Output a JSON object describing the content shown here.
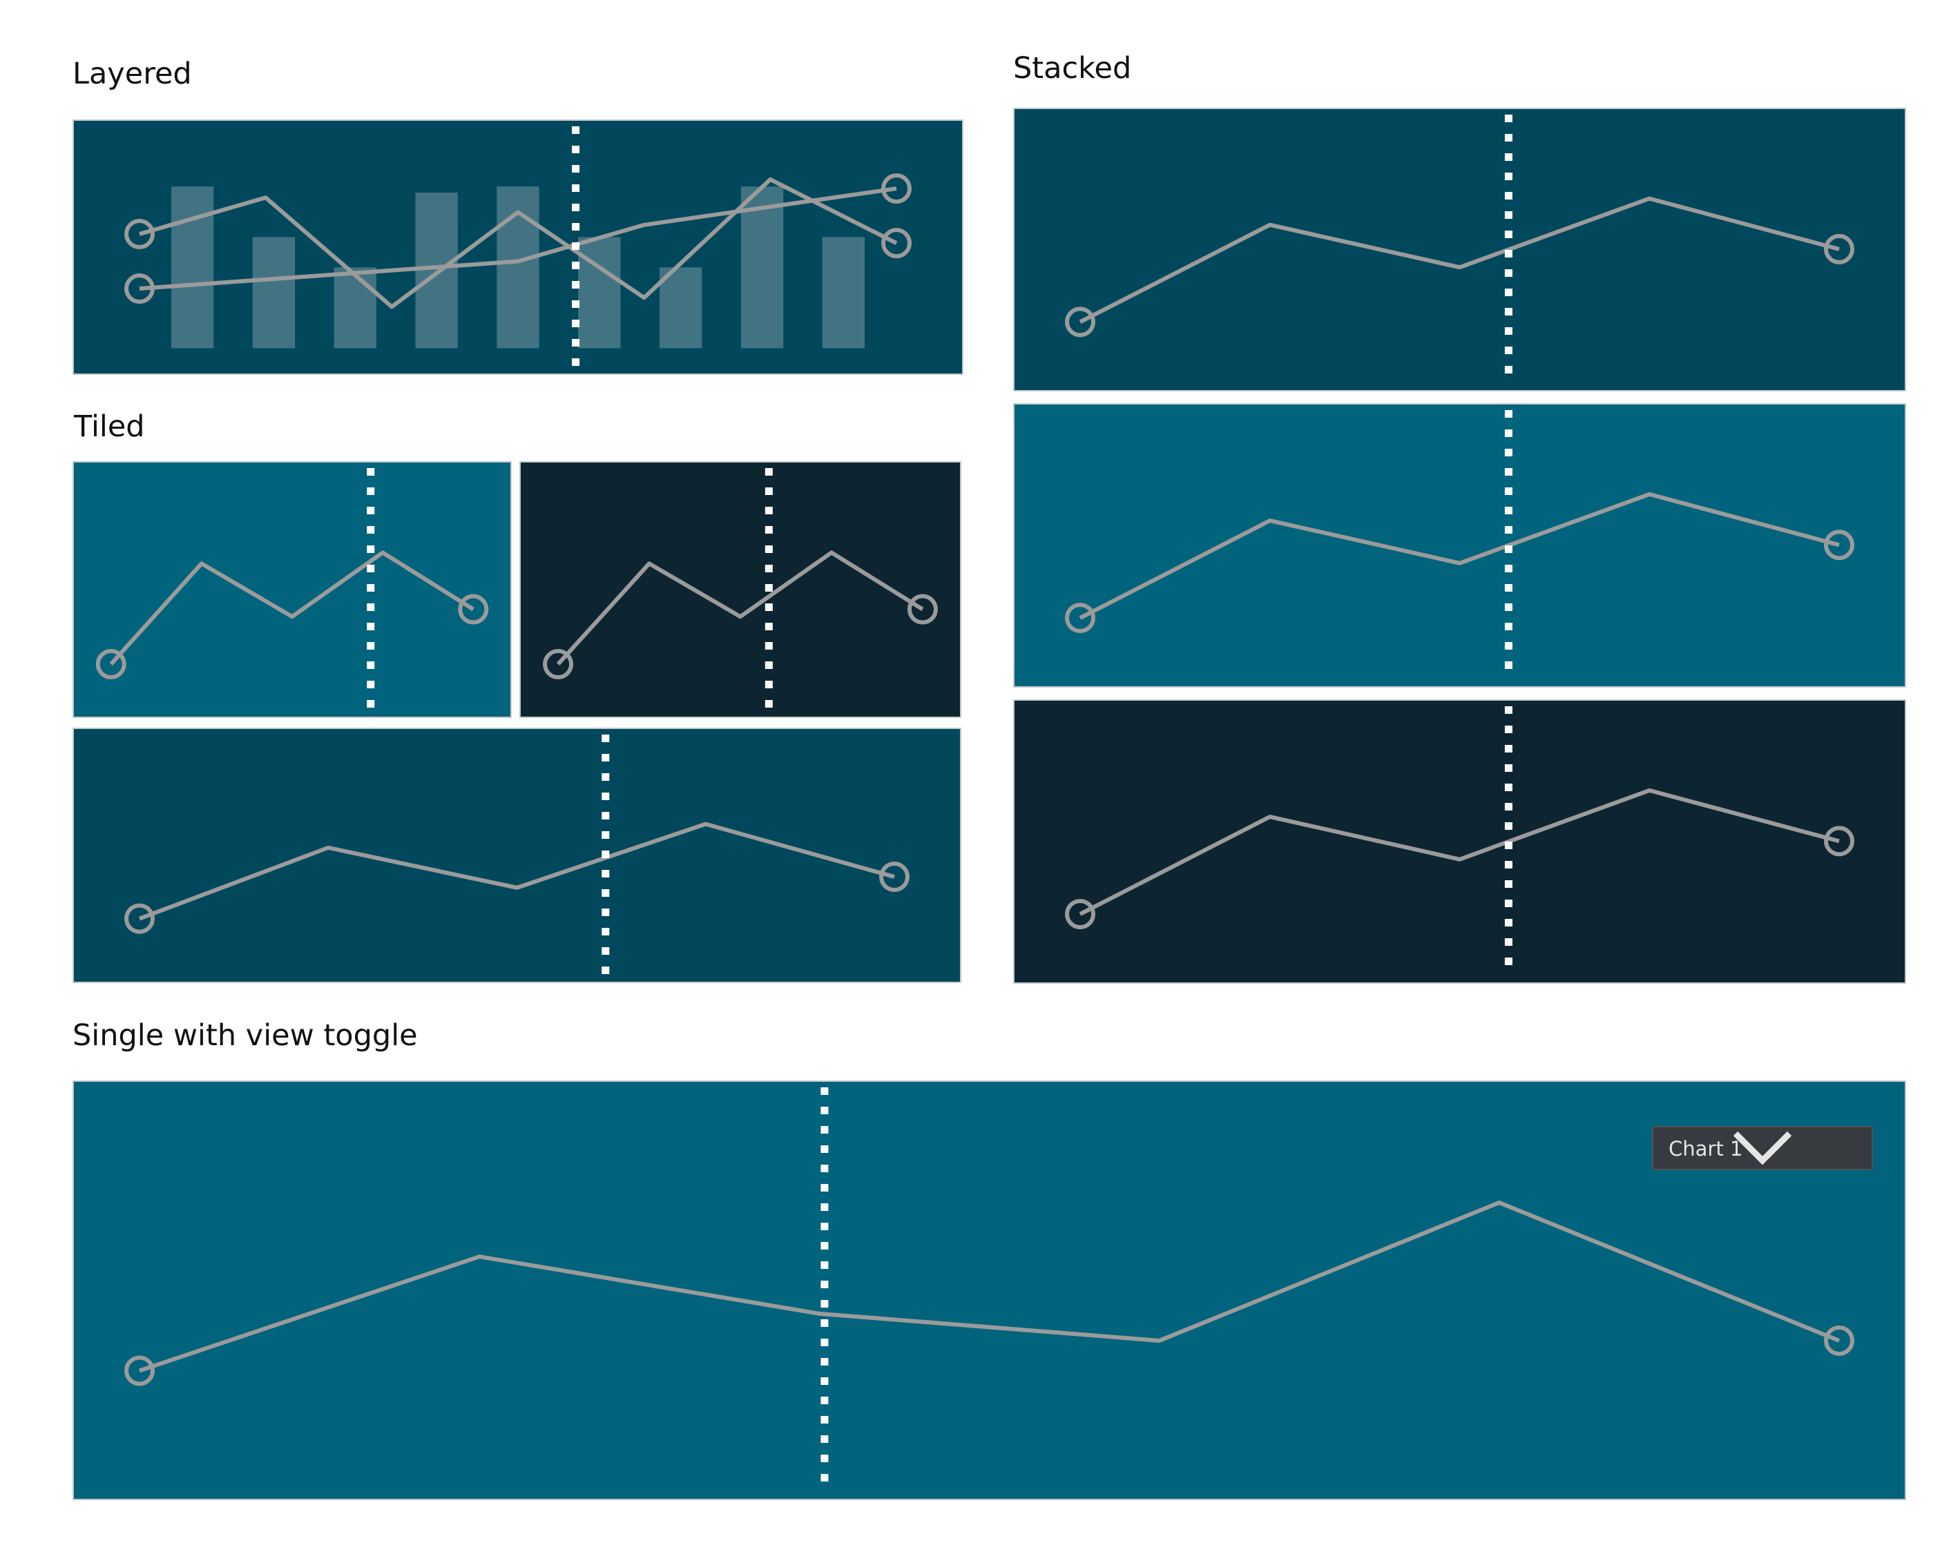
{
  "sections": {
    "layered": "Layered",
    "stacked": "Stacked",
    "tiled": "Tiled",
    "single": "Single with view toggle"
  },
  "view_toggle": {
    "selected": "Chart 1",
    "icon": "chevron-down-icon"
  },
  "colors": {
    "dark_teal": "#02485d",
    "mid_teal": "#02637c",
    "charcoal": "#0c2530",
    "line": "#9b9b9b",
    "bar": "#4e7b88",
    "cursor_line": "#ffffff",
    "toggle_bg": "#373b3f"
  },
  "chart_data": [
    {
      "id": "layered",
      "type": "bar",
      "bars": [
        0.8,
        0.55,
        0.4,
        0.77,
        0.8,
        0.55,
        0.4,
        0.8,
        0.55
      ],
      "series": [
        {
          "values": [
            0.6,
            0.8,
            0.2,
            0.72,
            0.25,
            0.9,
            0.55
          ]
        },
        {
          "values": [
            0.3,
            0.35,
            0.4,
            0.45,
            0.65,
            0.75,
            0.85
          ]
        }
      ],
      "cursor_position": 0.565
    },
    {
      "id": "tiled-1",
      "type": "line",
      "series": [
        {
          "values": [
            0.12,
            0.67,
            0.38,
            0.73,
            0.42
          ]
        }
      ],
      "cursor_position": 0.68
    },
    {
      "id": "tiled-2",
      "type": "line",
      "series": [
        {
          "values": [
            0.12,
            0.67,
            0.38,
            0.73,
            0.42
          ]
        }
      ],
      "cursor_position": 0.565
    },
    {
      "id": "tiled-3",
      "type": "line",
      "series": [
        {
          "values": [
            0.18,
            0.57,
            0.35,
            0.7,
            0.41
          ]
        }
      ],
      "cursor_position": 0.6
    },
    {
      "id": "stacked-1",
      "type": "line",
      "series": [
        {
          "values": [
            0.17,
            0.65,
            0.44,
            0.78,
            0.53
          ]
        }
      ],
      "cursor_position": 0.555
    },
    {
      "id": "stacked-2",
      "type": "line",
      "series": [
        {
          "values": [
            0.17,
            0.65,
            0.44,
            0.78,
            0.53
          ]
        }
      ],
      "cursor_position": 0.555
    },
    {
      "id": "stacked-3",
      "type": "line",
      "series": [
        {
          "values": [
            0.17,
            0.65,
            0.44,
            0.78,
            0.53
          ]
        }
      ],
      "cursor_position": 0.555
    },
    {
      "id": "single",
      "type": "line",
      "series": [
        {
          "values": [
            0.26,
            0.64,
            0.45,
            0.36,
            0.82,
            0.36
          ]
        }
      ],
      "cursor_position": 0.41
    }
  ]
}
